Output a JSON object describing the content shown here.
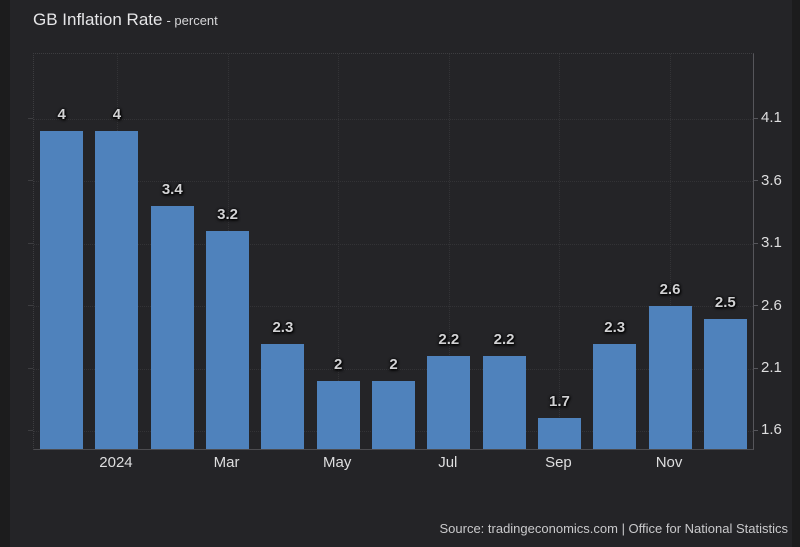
{
  "page": {
    "title": "GB Inflation Rate",
    "subtitle": "- percent",
    "source": "Source: tradingeconomics.com | Office for National Statistics"
  },
  "chart_data": {
    "type": "bar",
    "title": "GB Inflation Rate",
    "ylabel": "percent",
    "values": [
      4,
      4,
      3.4,
      3.2,
      2.3,
      2,
      2,
      2.2,
      2.2,
      1.7,
      2.3,
      2.6,
      2.5
    ],
    "bar_labels": [
      "4",
      "4",
      "3.4",
      "3.2",
      "2.3",
      "2",
      "2",
      "2.2",
      "2.2",
      "1.7",
      "2.3",
      "2.6",
      "2.5"
    ],
    "x_tick_labels": [
      "2024",
      "Mar",
      "May",
      "Jul",
      "Sep",
      "Nov"
    ],
    "x_tick_bar_indexes": [
      1,
      3,
      5,
      7,
      9,
      11
    ],
    "y_tick_labels": [
      "4.1",
      "3.6",
      "3.1",
      "2.6",
      "2.1",
      "1.6"
    ],
    "y_tick_values": [
      4.1,
      3.6,
      3.1,
      2.6,
      2.1,
      1.6
    ],
    "ylim": [
      1.455,
      4.62
    ],
    "grid": "dotted",
    "legend_position": "none",
    "bar_color": "#4f82bc"
  }
}
